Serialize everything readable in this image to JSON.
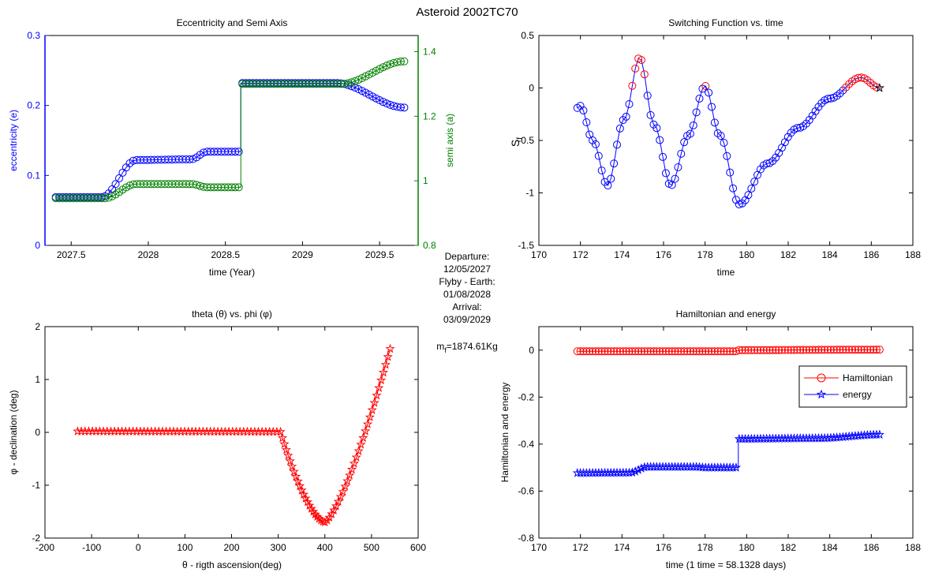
{
  "suptitle": "Asteroid 2002TC70",
  "info": {
    "l1": "Departure:",
    "l2": "12/05/2027",
    "l3": "Flyby - Earth:",
    "l4": "01/08/2028",
    "l5": "Arrival:",
    "l6": "03/09/2029",
    "mass_main": "m",
    "mass_sub": "f",
    "mass_val": "=1874.61Kg"
  },
  "colors": {
    "blue": "#0000ff",
    "green": "#008000",
    "red": "#ff0000",
    "black": "#000000"
  },
  "chart_data": [
    {
      "type": "scatter",
      "title": "Eccentricity and Semi Axis",
      "xlabel": "time (Year)",
      "ylabel": "eccentricity (e)",
      "y2label": "semi axis (a)",
      "xlim": [
        2027.33,
        2029.75
      ],
      "ylim": [
        0,
        0.3
      ],
      "y2lim": [
        0.8,
        1.45
      ],
      "xticks": [
        2027.5,
        2028,
        2028.5,
        2029,
        2029.5
      ],
      "xticklabels": [
        "2027.5",
        "2028",
        "2028.5",
        "2029",
        "2029.5"
      ],
      "yticks": [
        0,
        0.1,
        0.2,
        0.3
      ],
      "yticklabels": [
        "0",
        "0.1",
        "0.2",
        "0.3"
      ],
      "y2ticks": [
        0.8,
        1.0,
        1.2,
        1.4
      ],
      "y2ticklabels": [
        "0.8",
        "1",
        "1.2",
        "1.4"
      ],
      "marker": "circle",
      "series": [
        {
          "axis": "left",
          "color": "#0000ff",
          "x_range": [
            2027.4,
            2029.66
          ],
          "n": 100,
          "segments": [
            {
              "t": [
                2027.4,
                2027.7
              ],
              "v": [
                0.069,
                0.069
              ]
            },
            {
              "t": [
                2027.7,
                2027.92
              ],
              "v": [
                0.069,
                0.122
              ]
            },
            {
              "t": [
                2027.92,
                2028.28
              ],
              "v": [
                0.122,
                0.123
              ]
            },
            {
              "t": [
                2028.28,
                2028.38
              ],
              "v": [
                0.123,
                0.134
              ]
            },
            {
              "t": [
                2028.38,
                2028.6
              ],
              "v": [
                0.134,
                0.134
              ]
            },
            {
              "t": [
                2028.6,
                2028.6
              ],
              "v": [
                0.134,
                0.232
              ]
            },
            {
              "t": [
                2028.6,
                2029.22
              ],
              "v": [
                0.232,
                0.232
              ]
            },
            {
              "t": [
                2029.22,
                2029.66
              ],
              "v": [
                0.232,
                0.197
              ]
            }
          ]
        },
        {
          "axis": "right",
          "color": "#008000",
          "x_range": [
            2027.4,
            2029.66
          ],
          "n": 100,
          "segments": [
            {
              "t": [
                2027.4,
                2027.72
              ],
              "v": [
                0.946,
                0.946
              ]
            },
            {
              "t": [
                2027.72,
                2027.92
              ],
              "v": [
                0.946,
                0.99
              ]
            },
            {
              "t": [
                2027.92,
                2028.28
              ],
              "v": [
                0.99,
                0.99
              ]
            },
            {
              "t": [
                2028.28,
                2028.38
              ],
              "v": [
                0.99,
                0.98
              ]
            },
            {
              "t": [
                2028.38,
                2028.6
              ],
              "v": [
                0.98,
                0.98
              ]
            },
            {
              "t": [
                2028.6,
                2028.6
              ],
              "v": [
                0.98,
                1.3
              ]
            },
            {
              "t": [
                2028.6,
                2029.25
              ],
              "v": [
                1.3,
                1.3
              ]
            },
            {
              "t": [
                2029.25,
                2029.66
              ],
              "v": [
                1.3,
                1.37
              ]
            }
          ]
        }
      ]
    },
    {
      "type": "line",
      "title": "Switching Function vs. time",
      "xlabel": "time",
      "ylabel_main": "S",
      "ylabel_sub": "f",
      "xlim": [
        170,
        188
      ],
      "ylim": [
        -1.5,
        0.5
      ],
      "xticks": [
        170,
        172,
        174,
        176,
        178,
        180,
        182,
        184,
        186,
        188
      ],
      "xticklabels": [
        "170",
        "172",
        "174",
        "176",
        "178",
        "180",
        "182",
        "184",
        "186",
        "188"
      ],
      "yticks": [
        -1.5,
        -1,
        -0.5,
        0,
        0.5
      ],
      "yticklabels": [
        "-1.5",
        "-1",
        "-0.5",
        "0",
        "0.5"
      ],
      "marker": "circle",
      "t_range": [
        171.85,
        186.4
      ],
      "n": 100,
      "knots_t": [
        171.85,
        172.0,
        172.6,
        173.3,
        174.1,
        174.85,
        175.55,
        176.35,
        177.2,
        178.0,
        178.7,
        179.65,
        181.0,
        182.5,
        184.0,
        185.5,
        186.4
      ],
      "knots_v": [
        -0.19,
        -0.17,
        -0.5,
        -0.93,
        -0.3,
        0.29,
        -0.35,
        -0.93,
        -0.45,
        0.02,
        -0.45,
        -1.11,
        -0.72,
        -0.38,
        -0.1,
        0.1,
        0.0
      ],
      "on_color": "#ff0000",
      "off_color": "#0000ff",
      "end_marker": "star",
      "end_color": "#000000"
    },
    {
      "type": "scatter",
      "title_parts": [
        "theta (",
        "θ",
        ") vs. phi (",
        "φ",
        ")"
      ],
      "xlabel": "θ - rigth ascension(deg)",
      "ylabel": "φ - declination (deg)",
      "xlim": [
        -200,
        600
      ],
      "ylim": [
        -2,
        2
      ],
      "xticks": [
        -200,
        -100,
        0,
        100,
        200,
        300,
        400,
        500,
        600
      ],
      "xticklabels": [
        "-200",
        "-100",
        "0",
        "100",
        "200",
        "300",
        "400",
        "500",
        "600"
      ],
      "yticks": [
        -2,
        -1,
        0,
        1,
        2
      ],
      "yticklabels": [
        "-2",
        "-1",
        "0",
        "1",
        "2"
      ],
      "marker": "star",
      "color": "#ff0000",
      "segments": [
        {
          "x": [
            -130,
            305
          ],
          "y": [
            0.02,
            0.01
          ],
          "n": 56
        },
        {
          "x": [
            305,
            400
          ],
          "y": [
            0.01,
            -1.7
          ],
          "n": 24,
          "curve": "ease-out"
        },
        {
          "x": [
            400,
            540
          ],
          "y": [
            -1.7,
            1.58
          ],
          "n": 30,
          "curve": "ease-in"
        }
      ]
    },
    {
      "type": "line",
      "title": "Hamiltonian and energy",
      "xlabel": "time (1 time = 58.1328 days)",
      "ylabel": "Hamiltonian and energy",
      "xlim": [
        170,
        188
      ],
      "ylim": [
        -0.8,
        0.1
      ],
      "xticks": [
        170,
        172,
        174,
        176,
        178,
        180,
        182,
        184,
        186,
        188
      ],
      "xticklabels": [
        "170",
        "172",
        "174",
        "176",
        "178",
        "180",
        "182",
        "184",
        "186",
        "188"
      ],
      "yticks": [
        -0.8,
        -0.6,
        -0.4,
        -0.2,
        0
      ],
      "yticklabels": [
        "-0.8",
        "-0.6",
        "-0.4",
        "-0.2",
        "0"
      ],
      "legend_placement": "upper-right",
      "series": [
        {
          "name": "Hamiltonian",
          "color": "#ff0000",
          "marker": "circle",
          "n": 100,
          "t_range": [
            171.85,
            186.4
          ],
          "segments": [
            {
              "t": [
                171.85,
                179.6
              ],
              "v": [
                -0.005,
                -0.005
              ]
            },
            {
              "t": [
                179.6,
                186.4
              ],
              "v": [
                0.0,
                0.002
              ]
            }
          ]
        },
        {
          "name": "energy",
          "color": "#0000ff",
          "marker": "star",
          "n": 100,
          "t_range": [
            171.85,
            186.4
          ],
          "segments": [
            {
              "t": [
                171.85,
                174.4
              ],
              "v": [
                -0.523,
                -0.522
              ]
            },
            {
              "t": [
                174.4,
                175.2
              ],
              "v": [
                -0.522,
                -0.497
              ]
            },
            {
              "t": [
                175.2,
                177.6
              ],
              "v": [
                -0.497,
                -0.497
              ]
            },
            {
              "t": [
                177.6,
                178.0
              ],
              "v": [
                -0.497,
                -0.5
              ]
            },
            {
              "t": [
                178.0,
                179.6
              ],
              "v": [
                -0.5,
                -0.5
              ]
            },
            {
              "t": [
                179.6,
                179.6
              ],
              "v": [
                -0.5,
                -0.378
              ]
            },
            {
              "t": [
                179.6,
                183.5
              ],
              "v": [
                -0.378,
                -0.375
              ]
            },
            {
              "t": [
                183.5,
                186.4
              ],
              "v": [
                -0.375,
                -0.36
              ]
            }
          ]
        }
      ]
    }
  ]
}
